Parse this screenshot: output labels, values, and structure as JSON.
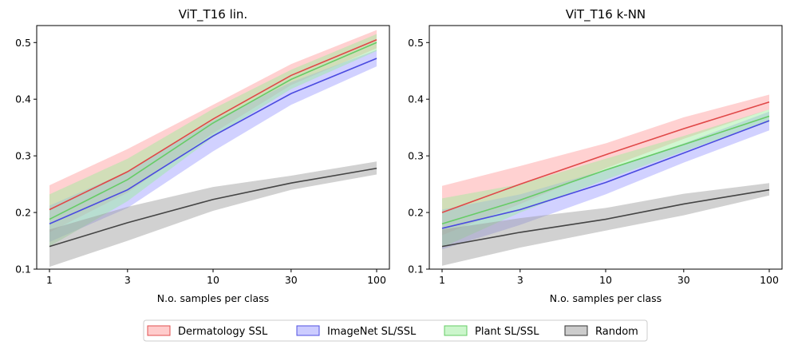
{
  "chart_data": [
    {
      "type": "line",
      "title": "ViT_T16 lin.",
      "xlabel": "N.o. samples per class",
      "ylabel": "",
      "x": [
        1,
        3,
        10,
        30,
        100
      ],
      "x_tick_labels": [
        "1",
        "3",
        "10",
        "30",
        "100"
      ],
      "x_scale": "log",
      "ylim": [
        0.1,
        0.53
      ],
      "y_ticks": [
        0.1,
        0.2,
        0.3,
        0.4,
        0.5
      ],
      "y_tick_labels": [
        "0.1",
        "0.2",
        "0.3",
        "0.4",
        "0.5"
      ],
      "grid": false,
      "series": [
        {
          "name": "Dermatology SSL",
          "values": [
            0.205,
            0.272,
            0.365,
            0.442,
            0.505
          ],
          "lower": [
            0.165,
            0.235,
            0.34,
            0.425,
            0.49
          ],
          "upper": [
            0.248,
            0.312,
            0.39,
            0.462,
            0.522
          ]
        },
        {
          "name": "ImageNet SL/SSL",
          "values": [
            0.18,
            0.24,
            0.335,
            0.41,
            0.472
          ],
          "lower": [
            0.148,
            0.208,
            0.308,
            0.39,
            0.458
          ],
          "upper": [
            0.212,
            0.272,
            0.362,
            0.43,
            0.487
          ]
        },
        {
          "name": "Plant SL/SSL",
          "values": [
            0.188,
            0.258,
            0.358,
            0.435,
            0.5
          ],
          "lower": [
            0.14,
            0.22,
            0.333,
            0.418,
            0.485
          ],
          "upper": [
            0.232,
            0.295,
            0.383,
            0.452,
            0.515
          ]
        },
        {
          "name": "Random",
          "values": [
            0.14,
            0.182,
            0.223,
            0.252,
            0.278
          ],
          "lower": [
            0.104,
            0.15,
            0.203,
            0.24,
            0.267
          ],
          "upper": [
            0.17,
            0.21,
            0.245,
            0.265,
            0.29
          ]
        }
      ]
    },
    {
      "type": "line",
      "title": "ViT_T16 k-NN",
      "xlabel": "N.o. samples per class",
      "ylabel": "",
      "x": [
        1,
        3,
        10,
        30,
        100
      ],
      "x_tick_labels": [
        "1",
        "3",
        "10",
        "30",
        "100"
      ],
      "x_scale": "log",
      "ylim": [
        0.1,
        0.53
      ],
      "y_ticks": [
        0.1,
        0.2,
        0.3,
        0.4,
        0.5
      ],
      "y_tick_labels": [
        "0.1",
        "0.2",
        "0.3",
        "0.4",
        "0.5"
      ],
      "grid": false,
      "series": [
        {
          "name": "Dermatology SSL",
          "values": [
            0.2,
            0.25,
            0.302,
            0.348,
            0.395
          ],
          "lower": [
            0.16,
            0.215,
            0.278,
            0.33,
            0.382
          ],
          "upper": [
            0.247,
            0.282,
            0.322,
            0.368,
            0.408
          ]
        },
        {
          "name": "ImageNet SL/SSL",
          "values": [
            0.172,
            0.205,
            0.253,
            0.305,
            0.362
          ],
          "lower": [
            0.135,
            0.178,
            0.232,
            0.288,
            0.345
          ],
          "upper": [
            0.205,
            0.232,
            0.275,
            0.322,
            0.378
          ]
        },
        {
          "name": "Plant SL/SSL",
          "values": [
            0.18,
            0.222,
            0.275,
            0.32,
            0.37
          ],
          "lower": [
            0.138,
            0.2,
            0.258,
            0.308,
            0.36
          ],
          "upper": [
            0.225,
            0.25,
            0.295,
            0.335,
            0.382
          ]
        },
        {
          "name": "Random",
          "values": [
            0.14,
            0.165,
            0.188,
            0.215,
            0.24
          ],
          "lower": [
            0.106,
            0.138,
            0.168,
            0.195,
            0.23
          ],
          "upper": [
            0.17,
            0.19,
            0.208,
            0.233,
            0.252
          ]
        }
      ]
    }
  ],
  "colors": {
    "Dermatology SSL": {
      "line": "#e04848",
      "fill": "#ff9999",
      "edge": "#e05050"
    },
    "ImageNet SL/SSL": {
      "line": "#4a4ae0",
      "fill": "#9999ff",
      "edge": "#5050e0"
    },
    "Plant SL/SSL": {
      "line": "#66cc66",
      "fill": "#99ee99",
      "edge": "#66cc66"
    },
    "Random": {
      "line": "#444444",
      "fill": "#999999",
      "edge": "#333333"
    }
  },
  "legend": {
    "placement": "bottom-center",
    "items": [
      "Dermatology SSL",
      "ImageNet SL/SSL",
      "Plant SL/SSL",
      "Random"
    ]
  }
}
